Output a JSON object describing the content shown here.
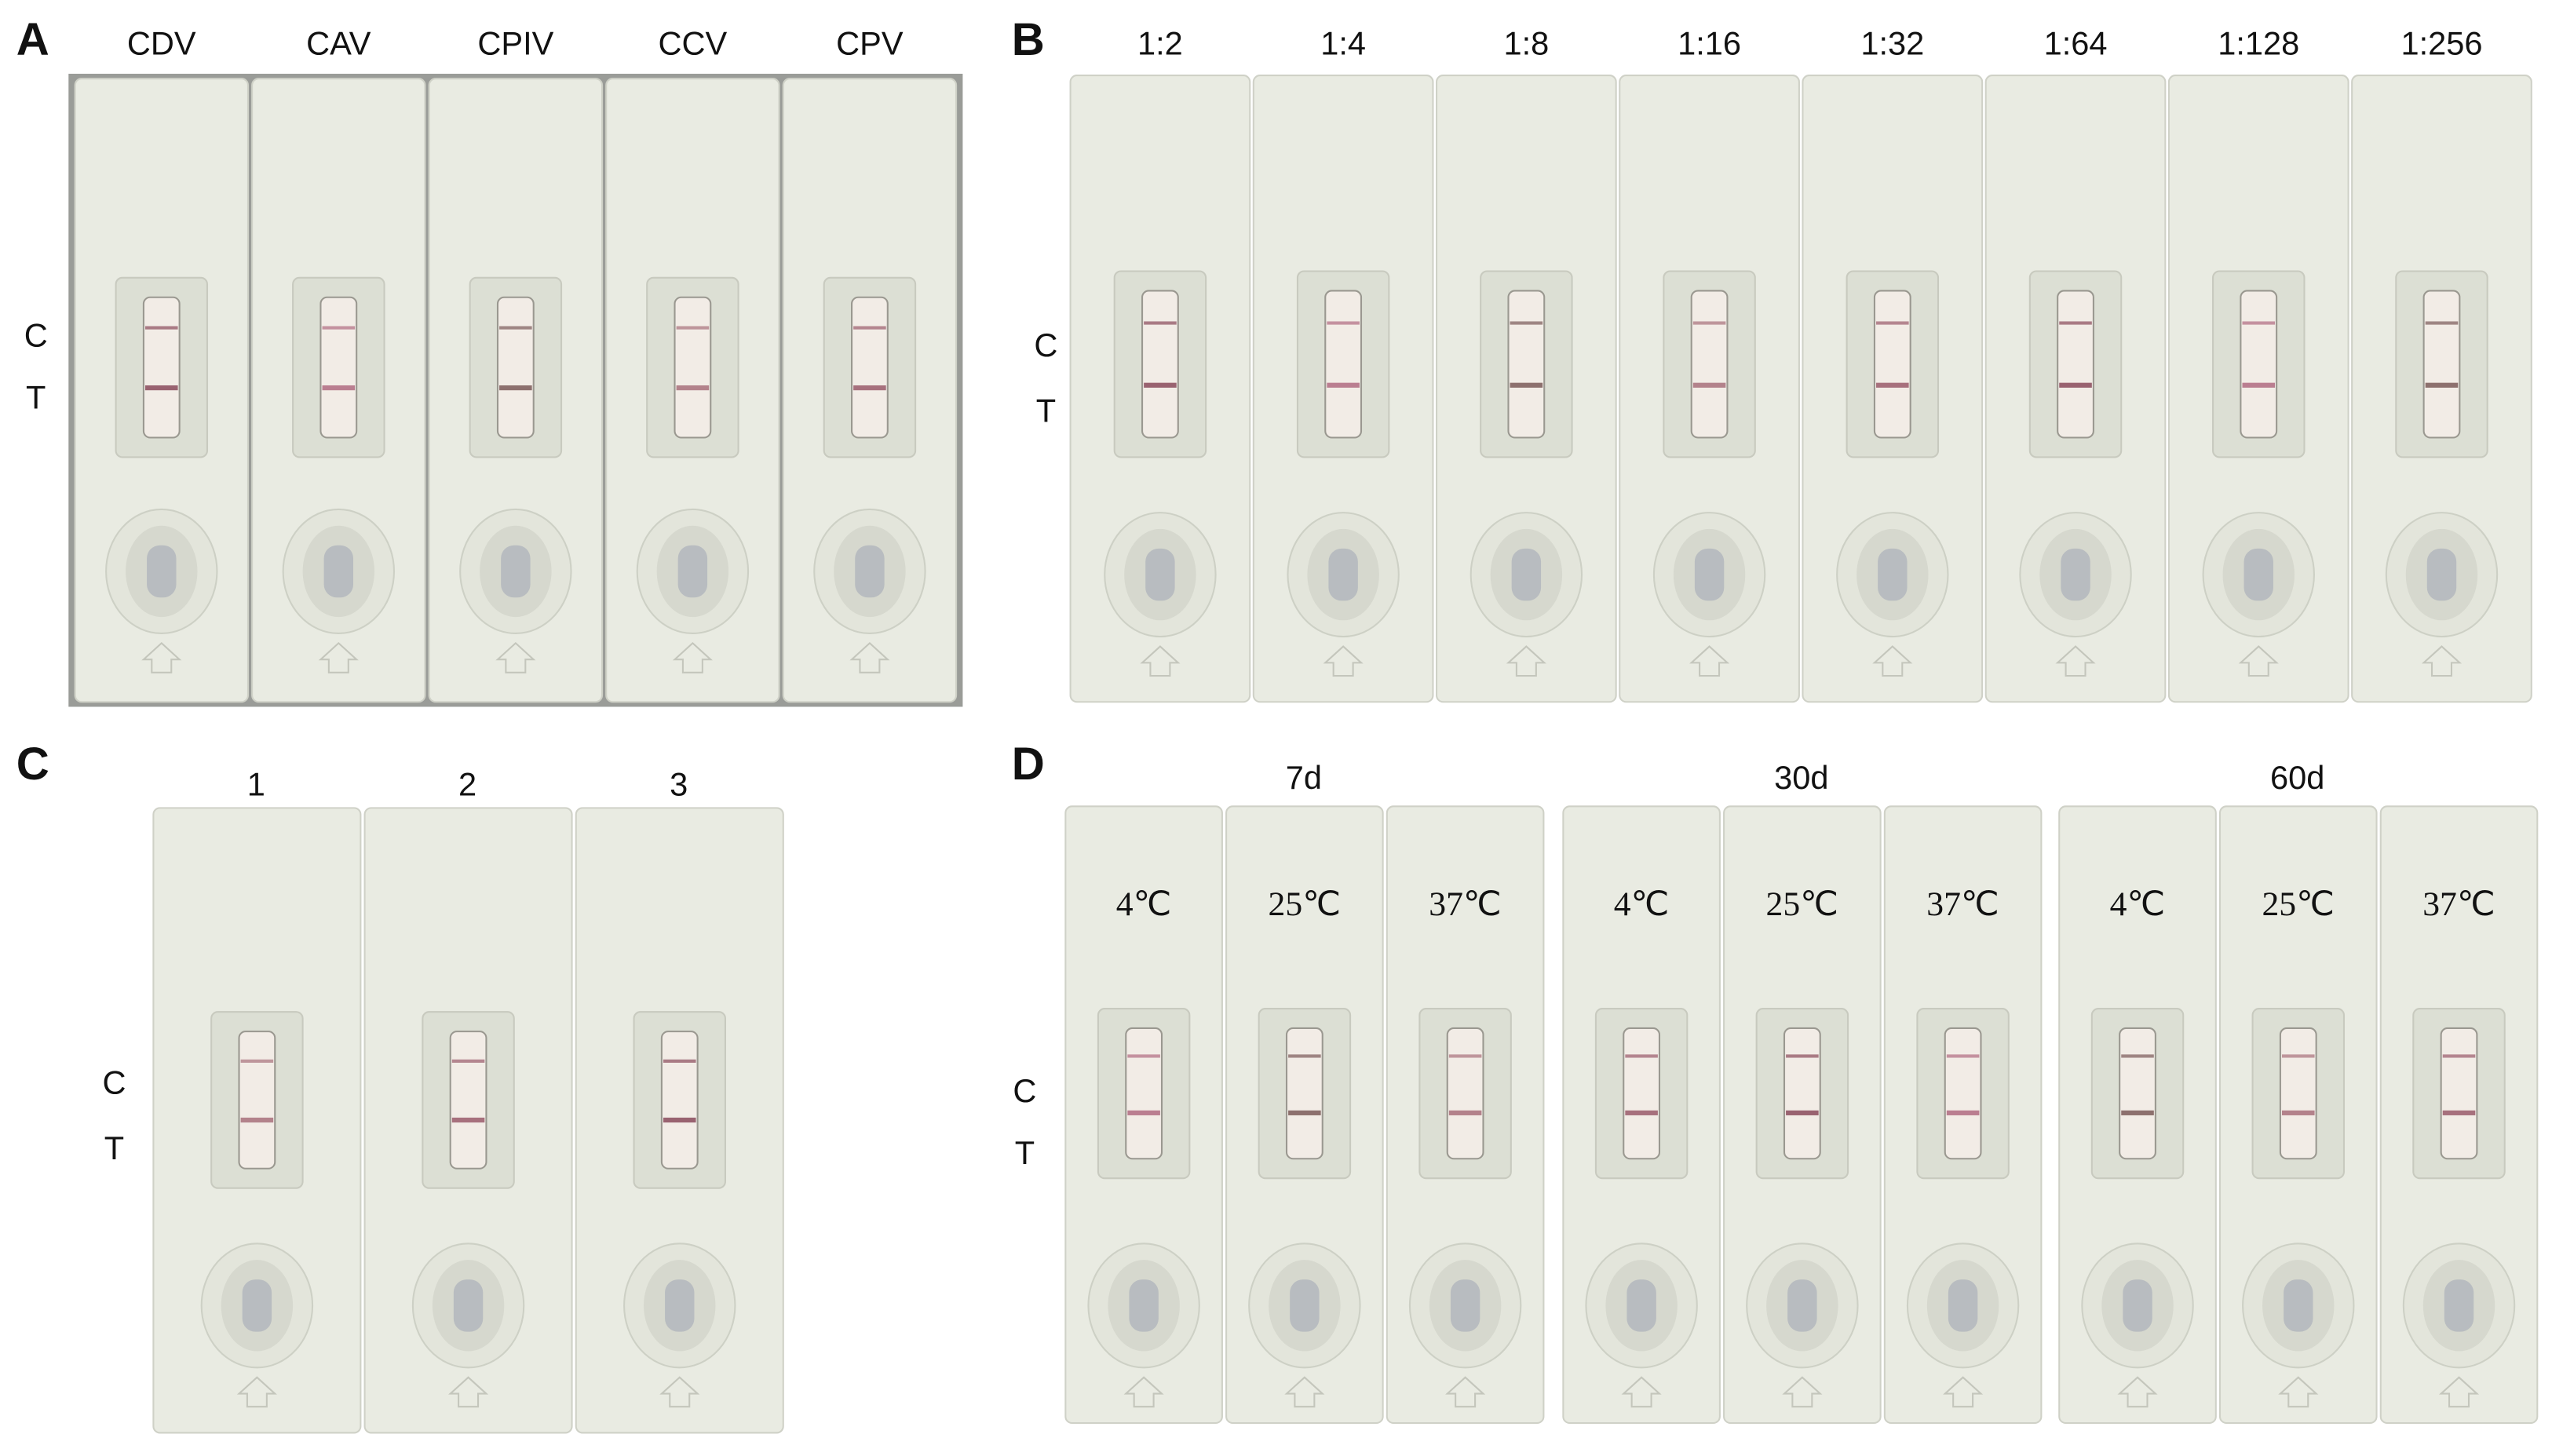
{
  "panels": [
    {
      "label": "A",
      "strips": [
        "CDV",
        "CAV",
        "CPIV",
        "CCV",
        "CPV"
      ],
      "line_labels": [
        "C",
        "T"
      ]
    },
    {
      "label": "B",
      "strips": [
        "1:2",
        "1:4",
        "1:8",
        "1:16",
        "1:32",
        "1:64",
        "1:128",
        "1:256"
      ],
      "line_labels": [
        "C",
        "T"
      ]
    },
    {
      "label": "C",
      "strips": [
        "1",
        "2",
        "3"
      ],
      "line_labels": [
        "C",
        "T"
      ]
    },
    {
      "label": "D",
      "groups": [
        {
          "name": "7d",
          "strips": [
            "4℃",
            "25℃",
            "37℃"
          ]
        },
        {
          "name": "30d",
          "strips": [
            "4℃",
            "25℃",
            "37℃"
          ]
        },
        {
          "name": "60d",
          "strips": [
            "4℃",
            "25℃",
            "37℃"
          ]
        }
      ],
      "line_labels": [
        "C",
        "T"
      ]
    }
  ]
}
